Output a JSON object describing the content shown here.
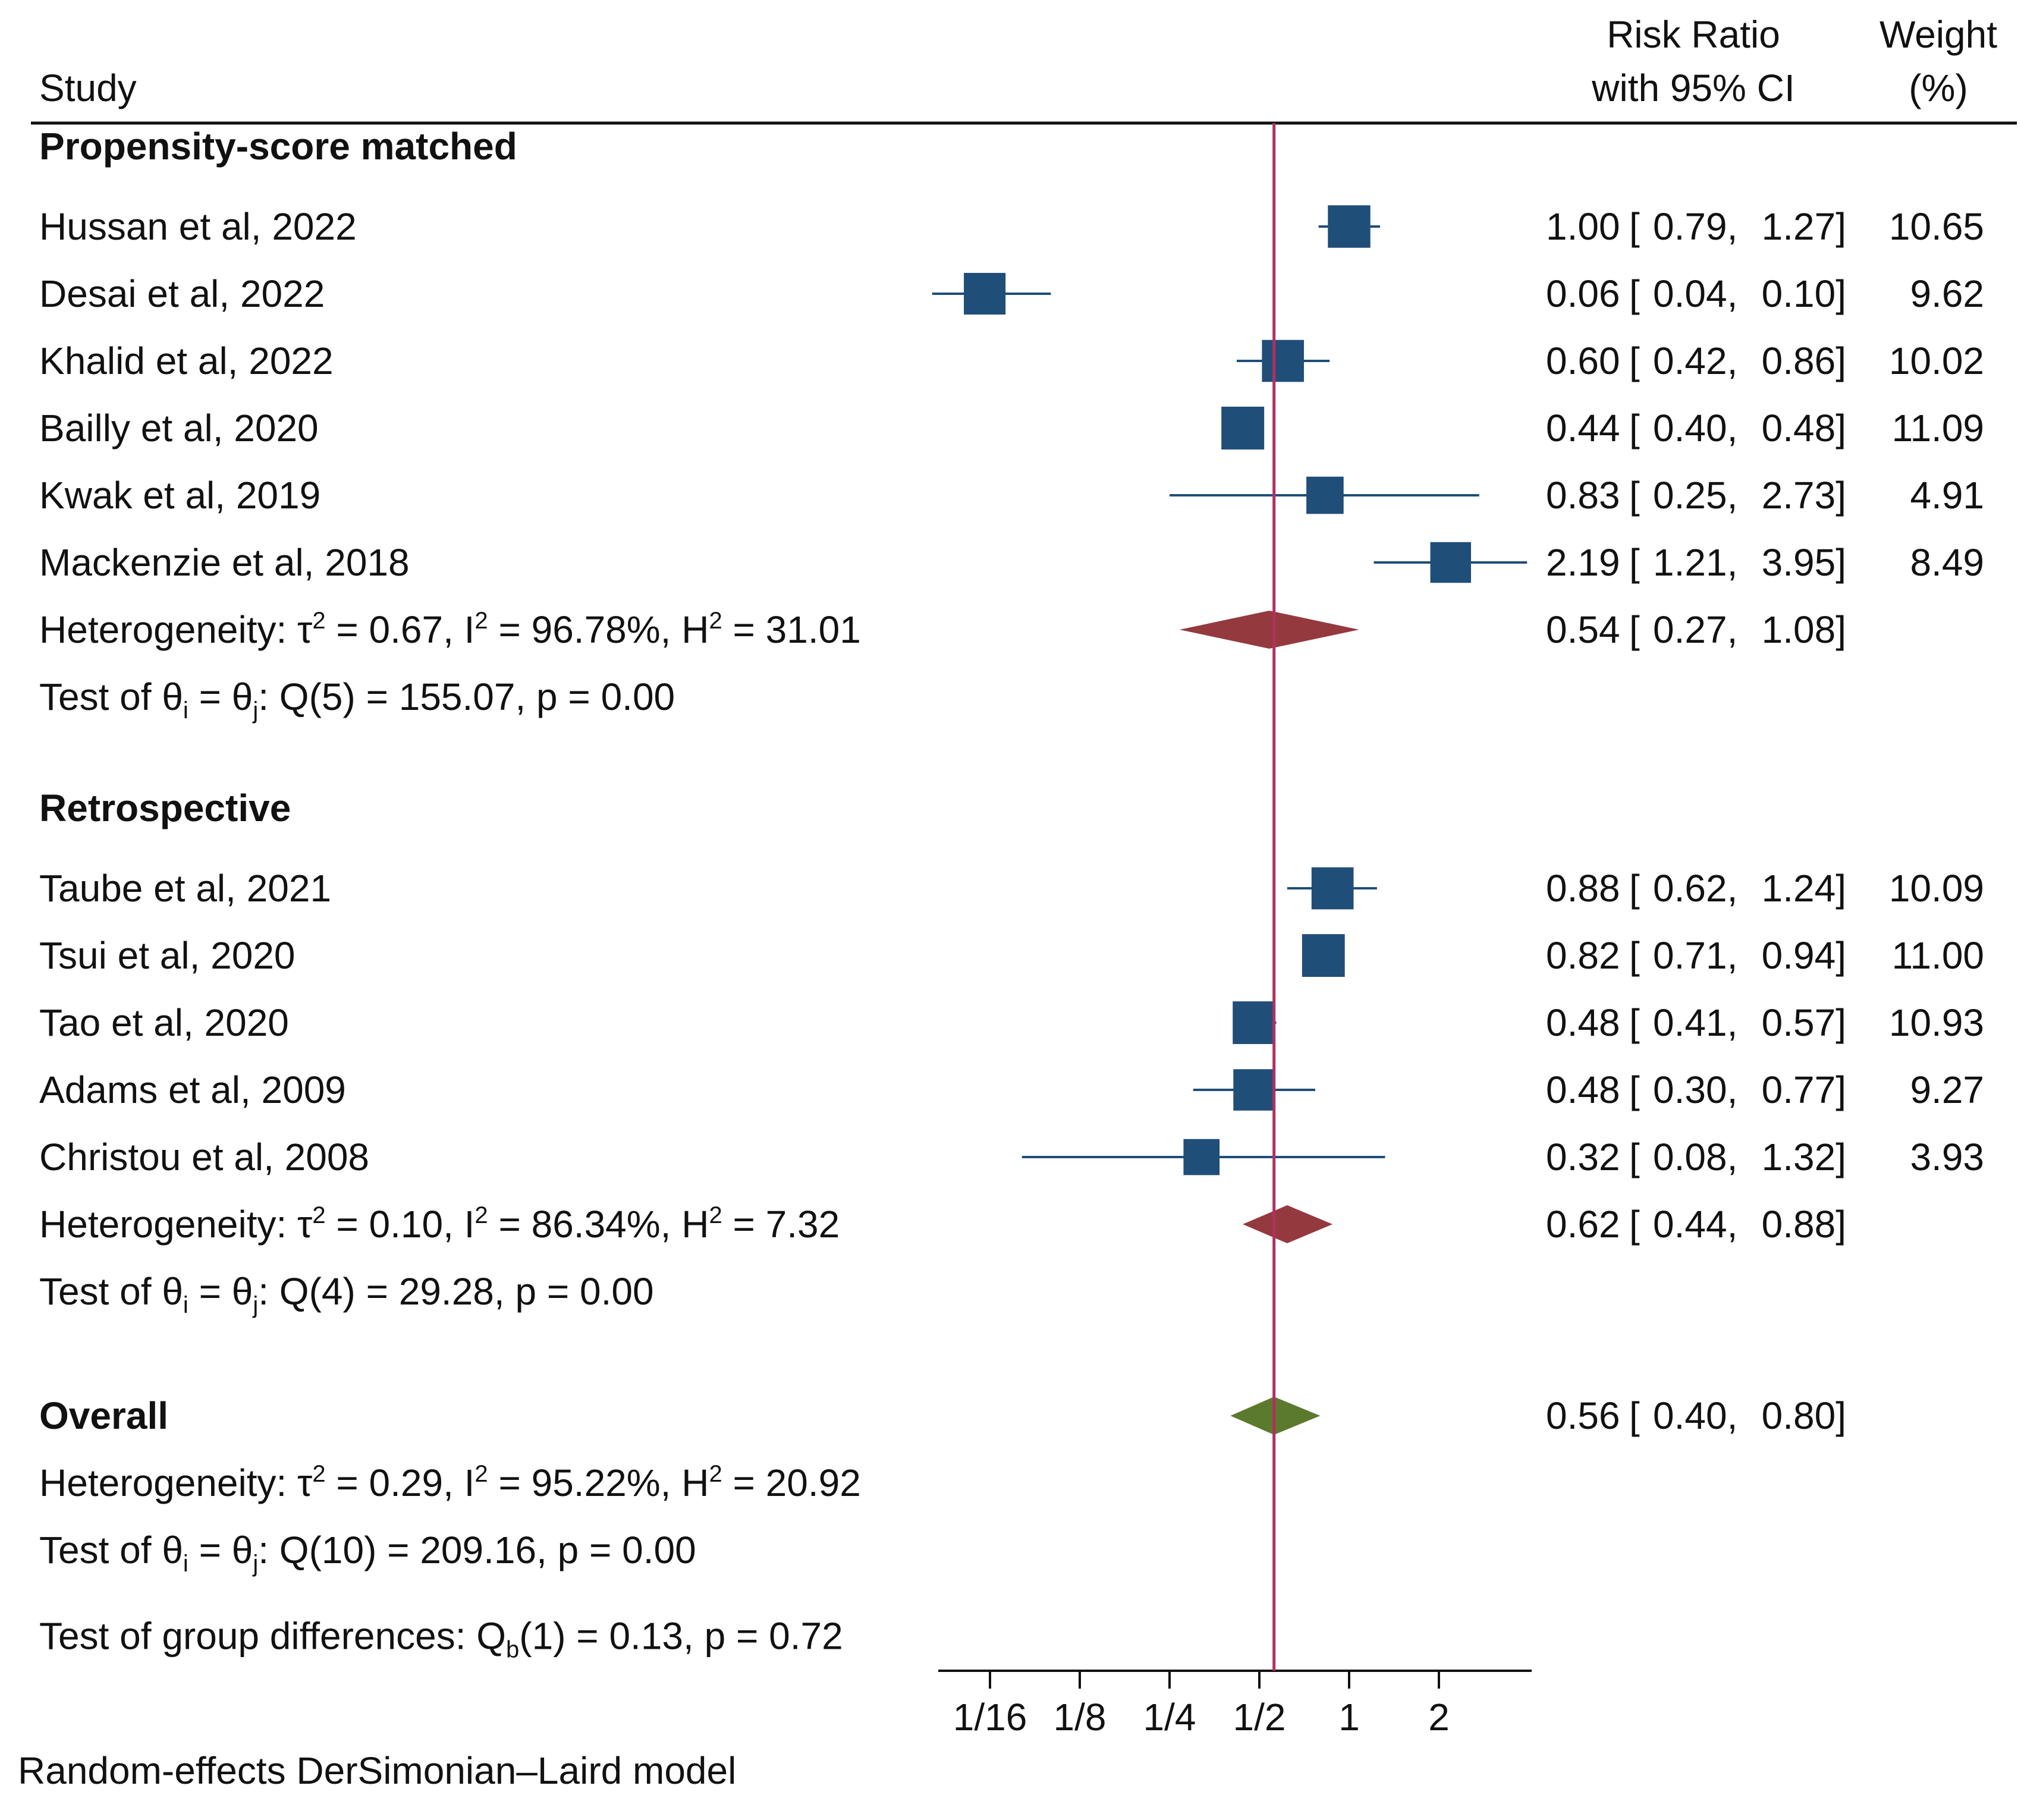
{
  "chart_data": {
    "type": "forest",
    "x_scale": "log2",
    "x_ticks": [
      "1/16",
      "1/8",
      "1/4",
      "1/2",
      "1",
      "2"
    ],
    "x_tick_values": [
      0.0625,
      0.125,
      0.25,
      0.5,
      1,
      2
    ],
    "reference_line": 0.56,
    "headers": {
      "study": "Study",
      "effect_line1": "Risk Ratio",
      "effect_line2": "with 95% CI",
      "weight_line1": "Weight",
      "weight_line2": "(%)"
    },
    "colors": {
      "study_marker": "#1F4E79",
      "subgroup_diamond": "#943A3F",
      "overall_diamond": "#5B7A2E",
      "reference_line": "#B03060"
    },
    "groups": [
      {
        "title": "Propensity-score matched",
        "studies": [
          {
            "name": "Hussan et al, 2022",
            "rr": 1.0,
            "lower": 0.79,
            "upper": 1.27,
            "rr_text": "1.00",
            "lower_text": "0.79",
            "upper_text": "1.27",
            "weight": "10.65"
          },
          {
            "name": "Desai et al, 2022",
            "rr": 0.06,
            "lower": 0.04,
            "upper": 0.1,
            "rr_text": "0.06",
            "lower_text": "0.04",
            "upper_text": "0.10",
            "weight": "9.62"
          },
          {
            "name": "Khalid et al, 2022",
            "rr": 0.6,
            "lower": 0.42,
            "upper": 0.86,
            "rr_text": "0.60",
            "lower_text": "0.42",
            "upper_text": "0.86",
            "weight": "10.02"
          },
          {
            "name": "Bailly et al, 2020",
            "rr": 0.44,
            "lower": 0.4,
            "upper": 0.48,
            "rr_text": "0.44",
            "lower_text": "0.40",
            "upper_text": "0.48",
            "weight": "11.09"
          },
          {
            "name": "Kwak et al, 2019",
            "rr": 0.83,
            "lower": 0.25,
            "upper": 2.73,
            "rr_text": "0.83",
            "lower_text": "0.25",
            "upper_text": "2.73",
            "weight": "4.91"
          },
          {
            "name": "Mackenzie et al, 2018",
            "rr": 2.19,
            "lower": 1.21,
            "upper": 3.95,
            "rr_text": "2.19",
            "lower_text": "1.21",
            "upper_text": "3.95",
            "weight": "8.49"
          }
        ],
        "summary": {
          "rr": 0.54,
          "lower": 0.27,
          "upper": 1.08,
          "rr_text": "0.54",
          "lower_text": "0.27",
          "upper_text": "1.08"
        },
        "heterogeneity": {
          "tau2": "0.67",
          "i2": "96.78%",
          "h2": "31.01"
        },
        "test": {
          "df": "5",
          "q": "155.07",
          "p": "0.00"
        }
      },
      {
        "title": "Retrospective",
        "studies": [
          {
            "name": "Taube et al, 2021",
            "rr": 0.88,
            "lower": 0.62,
            "upper": 1.24,
            "rr_text": "0.88",
            "lower_text": "0.62",
            "upper_text": "1.24",
            "weight": "10.09"
          },
          {
            "name": "Tsui et al, 2020",
            "rr": 0.82,
            "lower": 0.71,
            "upper": 0.94,
            "rr_text": "0.82",
            "lower_text": "0.71",
            "upper_text": "0.94",
            "weight": "11.00"
          },
          {
            "name": "Tao et al, 2020",
            "rr": 0.48,
            "lower": 0.41,
            "upper": 0.57,
            "rr_text": "0.48",
            "lower_text": "0.41",
            "upper_text": "0.57",
            "weight": "10.93"
          },
          {
            "name": "Adams et al, 2009",
            "rr": 0.48,
            "lower": 0.3,
            "upper": 0.77,
            "rr_text": "0.48",
            "lower_text": "0.30",
            "upper_text": "0.77",
            "weight": "9.27"
          },
          {
            "name": "Christou et al, 2008",
            "rr": 0.32,
            "lower": 0.08,
            "upper": 1.32,
            "rr_text": "0.32",
            "lower_text": "0.08",
            "upper_text": "1.32",
            "weight": "3.93"
          }
        ],
        "summary": {
          "rr": 0.62,
          "lower": 0.44,
          "upper": 0.88,
          "rr_text": "0.62",
          "lower_text": "0.44",
          "upper_text": "0.88"
        },
        "heterogeneity": {
          "tau2": "0.10",
          "i2": "86.34%",
          "h2": "7.32"
        },
        "test": {
          "df": "4",
          "q": "29.28",
          "p": "0.00"
        }
      }
    ],
    "overall": {
      "title": "Overall",
      "summary": {
        "rr": 0.56,
        "lower": 0.4,
        "upper": 0.8,
        "rr_text": "0.56",
        "lower_text": "0.40",
        "upper_text": "0.80"
      },
      "heterogeneity": {
        "tau2": "0.29",
        "i2": "95.22%",
        "h2": "20.92"
      },
      "test": {
        "df": "10",
        "q": "209.16",
        "p": "0.00"
      }
    },
    "group_difference": {
      "df": "1",
      "q": "0.13",
      "p": "0.72"
    },
    "footnote": "Random-effects DerSimonian–Laird model"
  }
}
